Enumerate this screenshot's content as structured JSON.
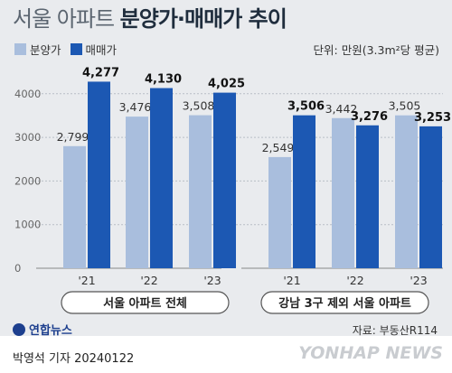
{
  "title_light": "서울 아파트",
  "title_bold": "분양가·매매가 추이",
  "legend": [
    {
      "label": "분양가",
      "color": "#a9bedd"
    },
    {
      "label": "매매가",
      "color": "#1c58b3"
    }
  ],
  "unit": "단위: 만원(3.3m²당 평균)",
  "source": "자료: 부동산R114",
  "logo": "연합뉴스",
  "byline": "박영석 기자  20240122",
  "watermark": "YONHAP NEWS",
  "chart_data": [
    {
      "type": "bar",
      "group_label": "서울 아파트 전체",
      "categories": [
        "'21",
        "'22",
        "'23"
      ],
      "ytick_labels": [
        "0",
        "1000",
        "2000",
        "3000",
        "4000"
      ],
      "ylim": [
        0,
        4700
      ],
      "series": [
        {
          "name": "분양가",
          "values": [
            2799,
            3476,
            3508
          ],
          "labels": [
            "2,799",
            "3,476",
            "3,508"
          ]
        },
        {
          "name": "매매가",
          "values": [
            4277,
            4130,
            4025
          ],
          "labels": [
            "4,277",
            "4,130",
            "4,025"
          ]
        }
      ]
    },
    {
      "type": "bar",
      "group_label": "강남 3구 제외 서울 아파트",
      "categories": [
        "'21",
        "'22",
        "'23"
      ],
      "ylim": [
        0,
        4700
      ],
      "series": [
        {
          "name": "분양가",
          "values": [
            2549,
            3442,
            3505
          ],
          "labels": [
            "2,549",
            "3,442",
            "3,505"
          ]
        },
        {
          "name": "매매가",
          "values": [
            3506,
            3276,
            3253
          ],
          "labels": [
            "3,506",
            "3,276",
            "3,253"
          ]
        }
      ]
    }
  ]
}
